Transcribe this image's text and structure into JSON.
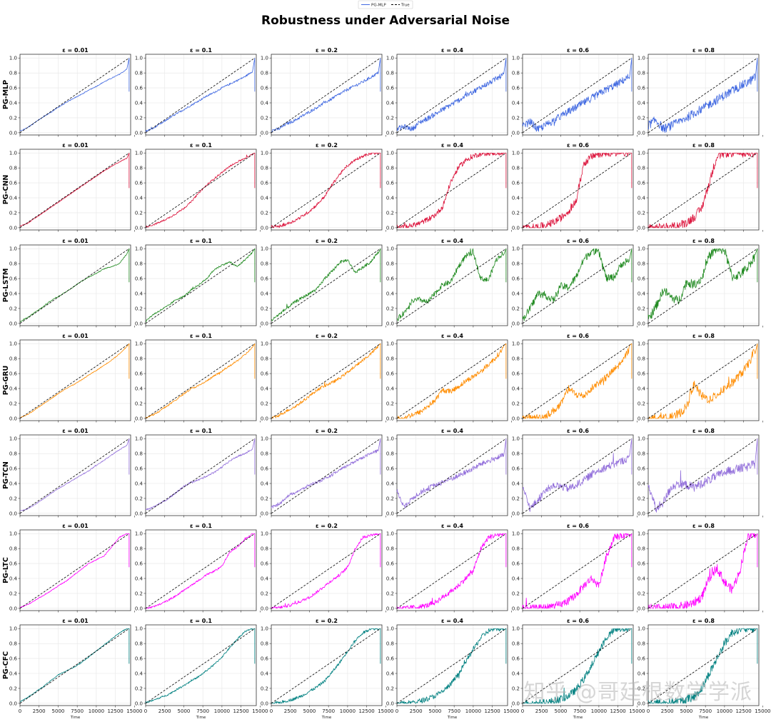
{
  "chart_data": {
    "type": "line",
    "title": "Robustness under Adversarial Noise",
    "legend": {
      "placement": "top-center",
      "entries": [
        "PG-MLP",
        "True"
      ]
    },
    "xlabel": "Time",
    "xlim": [
      0,
      14500
    ],
    "ylim": [
      -0.03,
      1.05
    ],
    "x_ticks": [
      0,
      2500,
      5000,
      7500,
      10000,
      12500,
      15000
    ],
    "x_tick_labels": [
      "0",
      "2500",
      "5000",
      "7500",
      "10000",
      "12500",
      "15000"
    ],
    "y_ticks": [
      0.0,
      0.2,
      0.4,
      0.6,
      0.8,
      1.0
    ],
    "y_tick_labels": [
      "0.0",
      "0.2",
      "0.4",
      "0.6",
      "0.8",
      "1.0"
    ],
    "grid": true,
    "true_series": {
      "name": "True",
      "x": [
        0,
        14300
      ],
      "y": [
        0.0,
        1.0
      ],
      "style": "dashed",
      "color": "#000000"
    },
    "epsilons": [
      "ε = 0.01",
      "ε = 0.1",
      "ε = 0.2",
      "ε = 0.4",
      "ε = 0.6",
      "ε = 0.8"
    ],
    "models": [
      {
        "name": "PG-MLP",
        "color": "#4169e1"
      },
      {
        "name": "PG-CNN",
        "color": "#dc143c"
      },
      {
        "name": "PG-LSTM",
        "color": "#228b22"
      },
      {
        "name": "PG-GRU",
        "color": "#ff8c00"
      },
      {
        "name": "PG-TCN",
        "color": "#9370db"
      },
      {
        "name": "PG-LTC",
        "color": "#ff00ff"
      },
      {
        "name": "PG-CFC",
        "color": "#008080"
      }
    ],
    "x": [
      0,
      1000,
      2000,
      3000,
      4000,
      5000,
      6000,
      7000,
      8000,
      9000,
      10000,
      11000,
      12000,
      13000,
      14000,
      14300
    ],
    "series": [
      [
        [
          0.02,
          0.07,
          0.14,
          0.21,
          0.27,
          0.34,
          0.4,
          0.46,
          0.51,
          0.57,
          0.62,
          0.68,
          0.73,
          0.78,
          0.85,
          0.55
        ],
        [
          0.02,
          0.06,
          0.12,
          0.19,
          0.25,
          0.31,
          0.37,
          0.43,
          0.49,
          0.54,
          0.6,
          0.65,
          0.7,
          0.75,
          0.82,
          0.55
        ],
        [
          0.03,
          0.05,
          0.12,
          0.16,
          0.22,
          0.28,
          0.34,
          0.4,
          0.46,
          0.52,
          0.58,
          0.63,
          0.68,
          0.74,
          0.8,
          0.55
        ],
        [
          0.05,
          0.08,
          0.05,
          0.14,
          0.19,
          0.25,
          0.31,
          0.37,
          0.43,
          0.49,
          0.55,
          0.61,
          0.66,
          0.72,
          0.78,
          0.55
        ],
        [
          0.08,
          0.15,
          0.04,
          0.1,
          0.16,
          0.22,
          0.28,
          0.34,
          0.4,
          0.46,
          0.52,
          0.58,
          0.63,
          0.69,
          0.75,
          0.55
        ],
        [
          0.1,
          0.17,
          0.05,
          0.09,
          0.14,
          0.2,
          0.26,
          0.32,
          0.38,
          0.44,
          0.5,
          0.56,
          0.62,
          0.67,
          0.74,
          0.55
        ]
      ],
      [
        [
          0.02,
          0.06,
          0.13,
          0.2,
          0.27,
          0.34,
          0.41,
          0.48,
          0.55,
          0.62,
          0.69,
          0.76,
          0.82,
          0.88,
          0.93,
          0.53
        ],
        [
          0.01,
          0.04,
          0.08,
          0.13,
          0.19,
          0.26,
          0.35,
          0.47,
          0.57,
          0.66,
          0.74,
          0.82,
          0.88,
          0.93,
          0.98,
          0.53
        ],
        [
          0.01,
          0.02,
          0.05,
          0.09,
          0.15,
          0.22,
          0.31,
          0.42,
          0.58,
          0.72,
          0.83,
          0.91,
          0.96,
          0.99,
          1.0,
          0.53
        ],
        [
          0.0,
          0.01,
          0.03,
          0.06,
          0.11,
          0.17,
          0.28,
          0.6,
          0.8,
          0.9,
          0.96,
          0.99,
          1.0,
          1.0,
          1.0,
          0.53
        ],
        [
          0.0,
          0.0,
          0.01,
          0.03,
          0.07,
          0.13,
          0.22,
          0.35,
          0.85,
          0.95,
          0.99,
          1.0,
          1.0,
          1.0,
          1.0,
          0.53
        ],
        [
          0.0,
          0.0,
          0.0,
          0.01,
          0.03,
          0.07,
          0.14,
          0.26,
          0.6,
          0.96,
          1.0,
          1.0,
          1.0,
          1.0,
          1.0,
          0.53
        ]
      ],
      [
        [
          0.02,
          0.08,
          0.15,
          0.22,
          0.3,
          0.36,
          0.42,
          0.49,
          0.56,
          0.62,
          0.67,
          0.73,
          0.76,
          0.8,
          0.93,
          0.55
        ],
        [
          0.03,
          0.12,
          0.18,
          0.24,
          0.32,
          0.36,
          0.45,
          0.52,
          0.6,
          0.72,
          0.78,
          0.82,
          0.76,
          0.85,
          0.95,
          0.55
        ],
        [
          0.04,
          0.12,
          0.2,
          0.28,
          0.34,
          0.4,
          0.46,
          0.6,
          0.7,
          0.82,
          0.85,
          0.68,
          0.75,
          0.82,
          0.95,
          0.55
        ],
        [
          0.05,
          0.15,
          0.3,
          0.32,
          0.28,
          0.4,
          0.52,
          0.55,
          0.75,
          0.9,
          0.95,
          0.6,
          0.58,
          0.85,
          0.95,
          0.55
        ],
        [
          0.05,
          0.2,
          0.4,
          0.38,
          0.3,
          0.5,
          0.48,
          0.62,
          0.85,
          0.97,
          0.95,
          0.6,
          0.62,
          0.8,
          0.85,
          0.55
        ],
        [
          0.05,
          0.22,
          0.45,
          0.35,
          0.3,
          0.55,
          0.52,
          0.6,
          0.9,
          1.0,
          0.98,
          0.62,
          0.65,
          0.75,
          0.9,
          0.55
        ]
      ],
      [
        [
          0.01,
          0.05,
          0.12,
          0.19,
          0.26,
          0.33,
          0.4,
          0.45,
          0.51,
          0.58,
          0.64,
          0.71,
          0.78,
          0.86,
          0.96,
          0.53
        ],
        [
          0.01,
          0.05,
          0.11,
          0.18,
          0.25,
          0.33,
          0.4,
          0.44,
          0.5,
          0.57,
          0.63,
          0.7,
          0.77,
          0.85,
          0.95,
          0.53
        ],
        [
          0.0,
          0.04,
          0.1,
          0.15,
          0.22,
          0.3,
          0.38,
          0.44,
          0.48,
          0.54,
          0.62,
          0.7,
          0.78,
          0.86,
          0.96,
          0.53
        ],
        [
          0.0,
          0.01,
          0.05,
          0.08,
          0.16,
          0.24,
          0.38,
          0.36,
          0.42,
          0.5,
          0.56,
          0.63,
          0.72,
          0.82,
          0.95,
          0.53
        ],
        [
          0.0,
          0.0,
          0.01,
          0.03,
          0.1,
          0.18,
          0.4,
          0.32,
          0.3,
          0.4,
          0.48,
          0.55,
          0.65,
          0.75,
          0.93,
          0.53
        ],
        [
          0.0,
          0.0,
          0.0,
          0.01,
          0.06,
          0.15,
          0.45,
          0.3,
          0.25,
          0.32,
          0.4,
          0.48,
          0.58,
          0.7,
          0.92,
          0.53
        ]
      ],
      [
        [
          0.03,
          0.06,
          0.12,
          0.19,
          0.26,
          0.33,
          0.39,
          0.45,
          0.51,
          0.57,
          0.64,
          0.71,
          0.78,
          0.85,
          0.91,
          0.52
        ],
        [
          0.05,
          0.08,
          0.14,
          0.2,
          0.28,
          0.36,
          0.42,
          0.45,
          0.5,
          0.55,
          0.62,
          0.7,
          0.76,
          0.8,
          0.86,
          0.52
        ],
        [
          0.08,
          0.12,
          0.22,
          0.28,
          0.32,
          0.38,
          0.42,
          0.46,
          0.52,
          0.58,
          0.64,
          0.7,
          0.75,
          0.8,
          0.84,
          0.52
        ],
        [
          0.3,
          0.08,
          0.2,
          0.28,
          0.33,
          0.38,
          0.42,
          0.46,
          0.5,
          0.55,
          0.6,
          0.66,
          0.7,
          0.74,
          0.78,
          0.52
        ],
        [
          0.35,
          0.06,
          0.18,
          0.3,
          0.38,
          0.36,
          0.33,
          0.38,
          0.44,
          0.52,
          0.58,
          0.62,
          0.66,
          0.7,
          0.74,
          0.52
        ],
        [
          0.4,
          0.05,
          0.15,
          0.35,
          0.4,
          0.38,
          0.35,
          0.4,
          0.45,
          0.5,
          0.55,
          0.58,
          0.6,
          0.62,
          0.66,
          0.52
        ]
      ],
      [
        [
          0.01,
          0.05,
          0.11,
          0.17,
          0.23,
          0.3,
          0.36,
          0.44,
          0.52,
          0.6,
          0.65,
          0.7,
          0.82,
          0.95,
          1.0,
          0.55
        ],
        [
          0.0,
          0.02,
          0.06,
          0.11,
          0.17,
          0.24,
          0.31,
          0.38,
          0.45,
          0.5,
          0.56,
          0.75,
          0.82,
          0.92,
          1.0,
          0.55
        ],
        [
          0.0,
          0.01,
          0.03,
          0.06,
          0.1,
          0.15,
          0.22,
          0.3,
          0.38,
          0.45,
          0.55,
          0.8,
          0.95,
          0.98,
          1.0,
          0.55
        ],
        [
          0.0,
          0.0,
          0.01,
          0.02,
          0.04,
          0.08,
          0.15,
          0.22,
          0.3,
          0.4,
          0.5,
          0.8,
          0.95,
          0.98,
          1.0,
          0.55
        ],
        [
          0.0,
          0.0,
          0.0,
          0.01,
          0.03,
          0.05,
          0.1,
          0.18,
          0.3,
          0.4,
          0.3,
          0.7,
          0.95,
          0.98,
          1.0,
          0.55
        ],
        [
          0.0,
          0.0,
          0.0,
          0.01,
          0.02,
          0.04,
          0.08,
          0.15,
          0.4,
          0.55,
          0.35,
          0.25,
          0.5,
          0.95,
          1.0,
          0.55
        ]
      ],
      [
        [
          0.02,
          0.08,
          0.15,
          0.22,
          0.3,
          0.38,
          0.43,
          0.48,
          0.54,
          0.62,
          0.7,
          0.78,
          0.86,
          0.94,
          1.0,
          0.53
        ],
        [
          0.01,
          0.04,
          0.08,
          0.12,
          0.18,
          0.24,
          0.3,
          0.36,
          0.44,
          0.52,
          0.62,
          0.74,
          0.86,
          0.96,
          1.0,
          0.53
        ],
        [
          0.0,
          0.01,
          0.03,
          0.06,
          0.1,
          0.16,
          0.22,
          0.3,
          0.42,
          0.55,
          0.7,
          0.84,
          0.94,
          1.0,
          1.0,
          0.53
        ],
        [
          0.0,
          0.0,
          0.01,
          0.03,
          0.06,
          0.1,
          0.16,
          0.25,
          0.38,
          0.55,
          0.72,
          0.88,
          0.97,
          1.0,
          1.0,
          0.53
        ],
        [
          0.0,
          0.0,
          0.0,
          0.01,
          0.03,
          0.06,
          0.1,
          0.18,
          0.32,
          0.5,
          0.7,
          0.88,
          0.98,
          1.0,
          1.0,
          0.53
        ],
        [
          0.0,
          0.0,
          0.0,
          0.01,
          0.02,
          0.05,
          0.09,
          0.2,
          0.4,
          0.6,
          0.8,
          0.95,
          1.0,
          1.0,
          1.0,
          0.53
        ]
      ]
    ]
  },
  "watermark_text": "知乎 @哥廷根数学学派"
}
